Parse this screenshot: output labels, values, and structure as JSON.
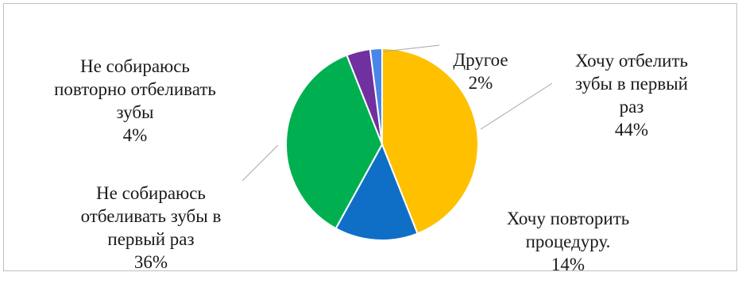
{
  "chart_data": {
    "type": "pie",
    "start_angle_deg": 0,
    "direction": "clockwise",
    "slices": [
      {
        "label": "Хочу отбелить\nзубы в первый\nраз",
        "value": 44,
        "percent_label": "44%",
        "color": "#FFC000"
      },
      {
        "label": "Хочу повторить\nпроцедуру.",
        "value": 14,
        "percent_label": "14%",
        "color": "#0F6FC6"
      },
      {
        "label": "Не собираюсь\nотбеливать зубы в\nпервый раз",
        "value": 36,
        "percent_label": "36%",
        "color": "#00B050"
      },
      {
        "label": "Не собираюсь\nповторно отбеливать\nзубы",
        "value": 4,
        "percent_label": "4%",
        "color": "#7030A0"
      },
      {
        "label": "Другое",
        "value": 2,
        "percent_label": "2%",
        "color": "#4A86E8"
      }
    ],
    "legend": "none"
  }
}
